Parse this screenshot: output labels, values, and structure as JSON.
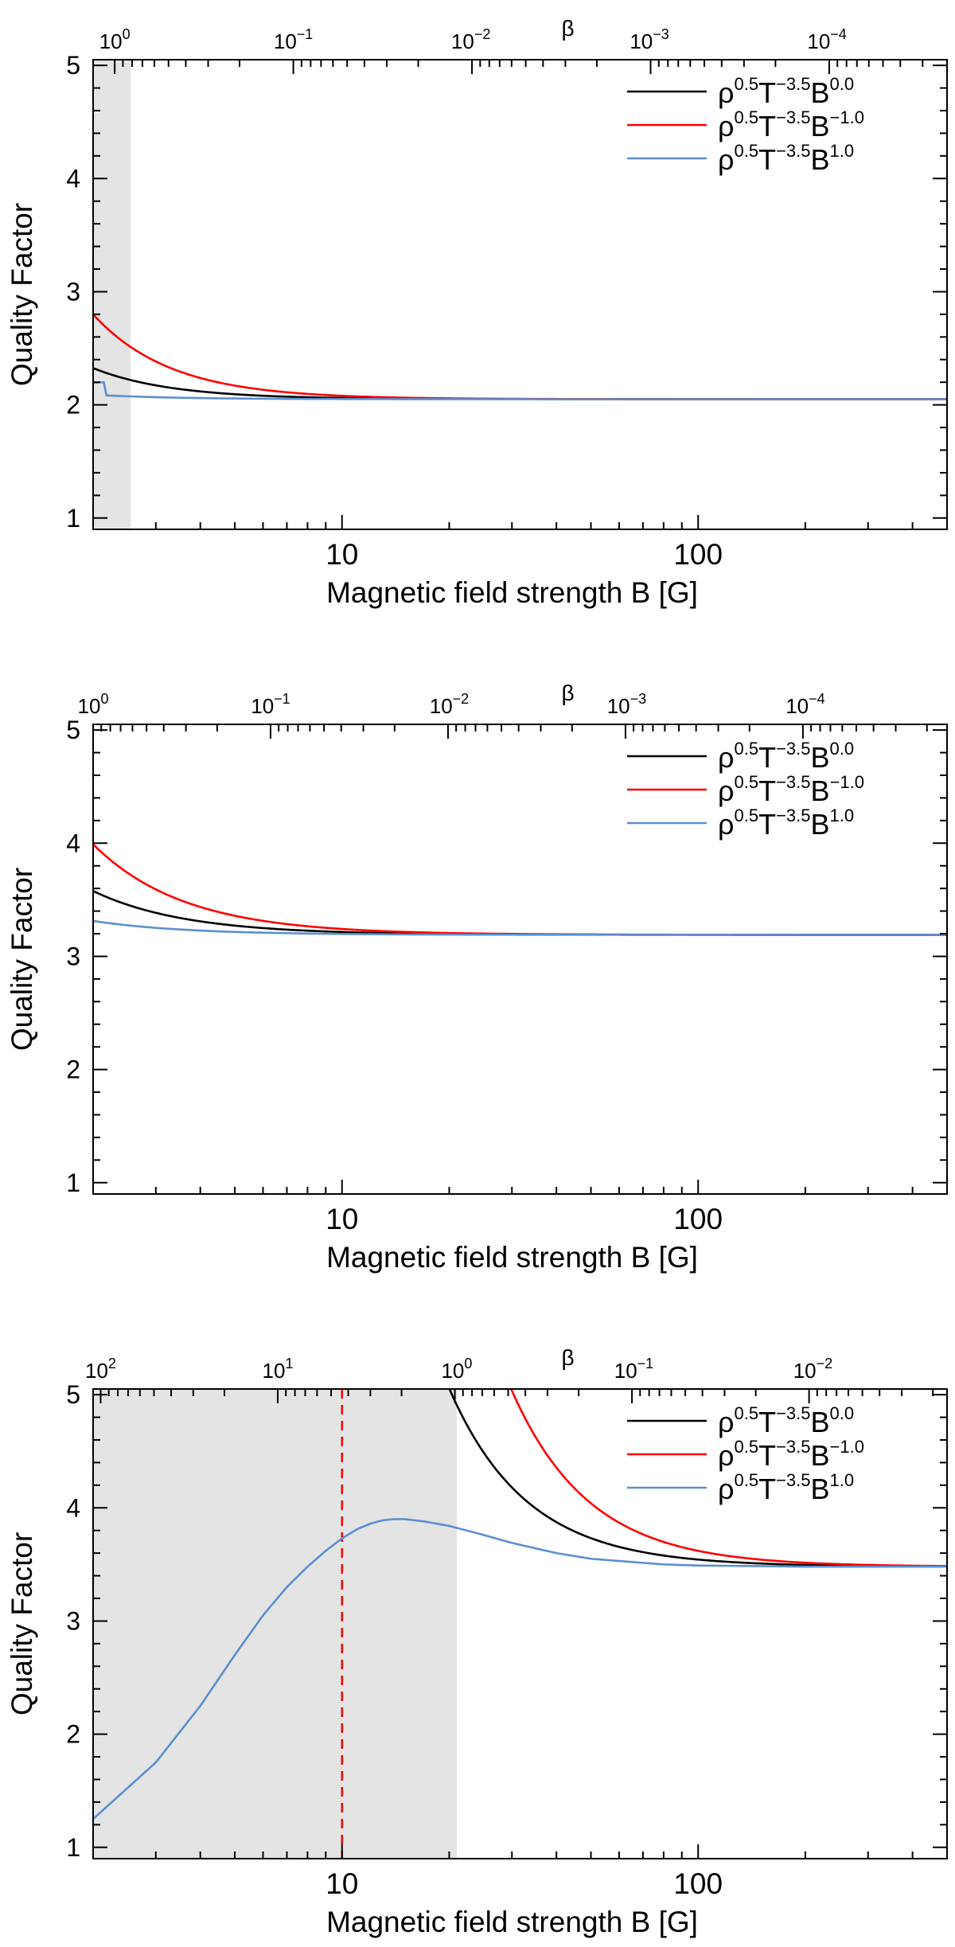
{
  "chart_data": [
    {
      "type": "line",
      "ylabel": "Quality Factor",
      "xlabel": "Magnetic field strength B [G]",
      "top_axis_label": "β",
      "xscale": "log",
      "xlim": [
        2,
        500
      ],
      "ylim": [
        0.9,
        5.05
      ],
      "yticks": [
        {
          "v": 1,
          "label": "1"
        },
        {
          "v": 2,
          "label": "2"
        },
        {
          "v": 3,
          "label": "3"
        },
        {
          "v": 4,
          "label": "4"
        },
        {
          "v": 5,
          "label": "5"
        }
      ],
      "xticks": [
        {
          "v": 10,
          "label": "10"
        },
        {
          "v": 100,
          "label": "100"
        }
      ],
      "top_ticks": [
        {
          "b": 2.3,
          "base": "10",
          "exp": "0"
        },
        {
          "b": 7.3,
          "base": "10",
          "exp": "−1"
        },
        {
          "b": 23,
          "base": "10",
          "exp": "−2"
        },
        {
          "b": 73,
          "base": "10",
          "exp": "−3"
        },
        {
          "b": 230,
          "base": "10",
          "exp": "−4"
        }
      ],
      "shaded_region": [
        2,
        2.55
      ],
      "vline": null,
      "legend": {
        "placement": "top-right"
      },
      "series": [
        {
          "name": "ρ0.5T−3.5B0.0",
          "legend": {
            "p1": "ρ",
            "e1": "0.5",
            "p2": "T",
            "e2": "−3.5",
            "p3": "B",
            "e3": "0.0"
          },
          "color": "#000000",
          "q_inf": 2.05,
          "A": 1.1,
          "n": 2
        },
        {
          "name": "ρ0.5T−3.5B−1.0",
          "legend": {
            "p1": "ρ",
            "e1": "0.5",
            "p2": "T",
            "e2": "−3.5",
            "p3": "B",
            "e3": "−1.0"
          },
          "color": "#ff0000",
          "q_inf": 2.05,
          "A": 3.0,
          "n": 2
        },
        {
          "name": "ρ0.5T−3.5B1.0",
          "legend": {
            "p1": "ρ",
            "e1": "0.5",
            "p2": "T",
            "e2": "−3.5",
            "p3": "B",
            "e3": "1.0"
          },
          "color": "#5b8fd0",
          "q_inf": 2.05,
          "A": 0.16,
          "n": 2,
          "hump": {
            "peak": 2.2,
            "at": 2.15
          }
        }
      ]
    },
    {
      "type": "line",
      "ylabel": "Quality Factor",
      "xlabel": "Magnetic field strength B [G]",
      "top_axis_label": "β",
      "xscale": "log",
      "xlim": [
        2,
        500
      ],
      "ylim": [
        0.9,
        5.05
      ],
      "yticks": [
        {
          "v": 1,
          "label": "1"
        },
        {
          "v": 2,
          "label": "2"
        },
        {
          "v": 3,
          "label": "3"
        },
        {
          "v": 4,
          "label": "4"
        },
        {
          "v": 5,
          "label": "5"
        }
      ],
      "xticks": [
        {
          "v": 10,
          "label": "10"
        },
        {
          "v": 100,
          "label": "100"
        }
      ],
      "top_ticks": [
        {
          "b": 2,
          "base": "10",
          "exp": "0"
        },
        {
          "b": 6.3,
          "base": "10",
          "exp": "−1"
        },
        {
          "b": 20,
          "base": "10",
          "exp": "−2"
        },
        {
          "b": 63,
          "base": "10",
          "exp": "−3"
        },
        {
          "b": 200,
          "base": "10",
          "exp": "−4"
        }
      ],
      "shaded_region": null,
      "vline": null,
      "legend": {
        "placement": "top-right"
      },
      "series": [
        {
          "name": "ρ0.5T−3.5B0.0",
          "legend": {
            "p1": "ρ",
            "e1": "0.5",
            "p2": "T",
            "e2": "−3.5",
            "p3": "B",
            "e3": "0.0"
          },
          "color": "#000000",
          "q_inf": 3.19,
          "A": 1.26,
          "n": 1.7
        },
        {
          "name": "ρ0.5T−3.5B−1.0",
          "legend": {
            "p1": "ρ",
            "e1": "0.5",
            "p2": "T",
            "e2": "−3.5",
            "p3": "B",
            "e3": "−1.0"
          },
          "color": "#ff0000",
          "q_inf": 3.19,
          "A": 2.6,
          "n": 1.7
        },
        {
          "name": "ρ0.5T−3.5B1.0",
          "legend": {
            "p1": "ρ",
            "e1": "0.5",
            "p2": "T",
            "e2": "−3.5",
            "p3": "B",
            "e3": "1.0"
          },
          "color": "#5b8fd0",
          "q_inf": 3.19,
          "A": 0.4,
          "n": 1.7
        }
      ]
    },
    {
      "type": "line",
      "ylabel": "Quality Factor",
      "xlabel": "Magnetic field strength B [G]",
      "top_axis_label": "β",
      "xscale": "log",
      "xlim": [
        2,
        500
      ],
      "ylim": [
        0.9,
        5.05
      ],
      "yticks": [
        {
          "v": 1,
          "label": "1"
        },
        {
          "v": 2,
          "label": "2"
        },
        {
          "v": 3,
          "label": "3"
        },
        {
          "v": 4,
          "label": "4"
        },
        {
          "v": 5,
          "label": "5"
        }
      ],
      "xticks": [
        {
          "v": 10,
          "label": "10"
        },
        {
          "v": 100,
          "label": "100"
        }
      ],
      "top_ticks": [
        {
          "b": 2.1,
          "base": "10",
          "exp": "2"
        },
        {
          "b": 6.6,
          "base": "10",
          "exp": "1"
        },
        {
          "b": 21,
          "base": "10",
          "exp": "0"
        },
        {
          "b": 66,
          "base": "10",
          "exp": "−1"
        },
        {
          "b": 210,
          "base": "10",
          "exp": "−2"
        }
      ],
      "shaded_region": [
        2,
        21
      ],
      "vline": {
        "x": 10,
        "color": "#ff0000"
      },
      "legend": {
        "placement": "top-right"
      },
      "series": [
        {
          "name": "ρ0.5T−3.5B0.0",
          "legend": {
            "p1": "ρ",
            "e1": "0.5",
            "p2": "T",
            "e2": "−3.5",
            "p3": "B",
            "e3": "0.0"
          },
          "color": "#000000",
          "q_inf": 3.48,
          "A": 630,
          "n": 2
        },
        {
          "name": "ρ0.5T−3.5B−1.0",
          "legend": {
            "p1": "ρ",
            "e1": "0.5",
            "p2": "T",
            "e2": "−3.5",
            "p3": "B",
            "e3": "−1.0"
          },
          "color": "#ff0000",
          "q_inf": 3.48,
          "A": 1400,
          "n": 2
        },
        {
          "name": "ρ0.5T−3.5B1.0",
          "legend": {
            "p1": "ρ",
            "e1": "0.5",
            "p2": "T",
            "e2": "−3.5",
            "p3": "B",
            "e3": "1.0"
          },
          "color": "#5b8fd0",
          "q_inf": 3.48,
          "peak": {
            "x": 14.5,
            "y": 3.9
          },
          "points": [
            [
              2,
              1.25
            ],
            [
              3,
              1.75
            ],
            [
              4,
              2.25
            ],
            [
              5,
              2.7
            ],
            [
              6,
              3.05
            ],
            [
              7,
              3.3
            ],
            [
              8,
              3.48
            ],
            [
              9,
              3.62
            ],
            [
              10,
              3.73
            ],
            [
              11,
              3.81
            ],
            [
              12,
              3.86
            ],
            [
              13,
              3.89
            ],
            [
              14,
              3.9
            ],
            [
              15,
              3.9
            ],
            [
              17,
              3.88
            ],
            [
              20,
              3.84
            ],
            [
              25,
              3.76
            ],
            [
              30,
              3.69
            ],
            [
              40,
              3.6
            ],
            [
              50,
              3.55
            ],
            [
              60,
              3.53
            ],
            [
              80,
              3.5
            ],
            [
              100,
              3.49
            ],
            [
              150,
              3.485
            ],
            [
              200,
              3.48
            ],
            [
              300,
              3.48
            ],
            [
              500,
              3.48
            ]
          ]
        }
      ]
    }
  ]
}
